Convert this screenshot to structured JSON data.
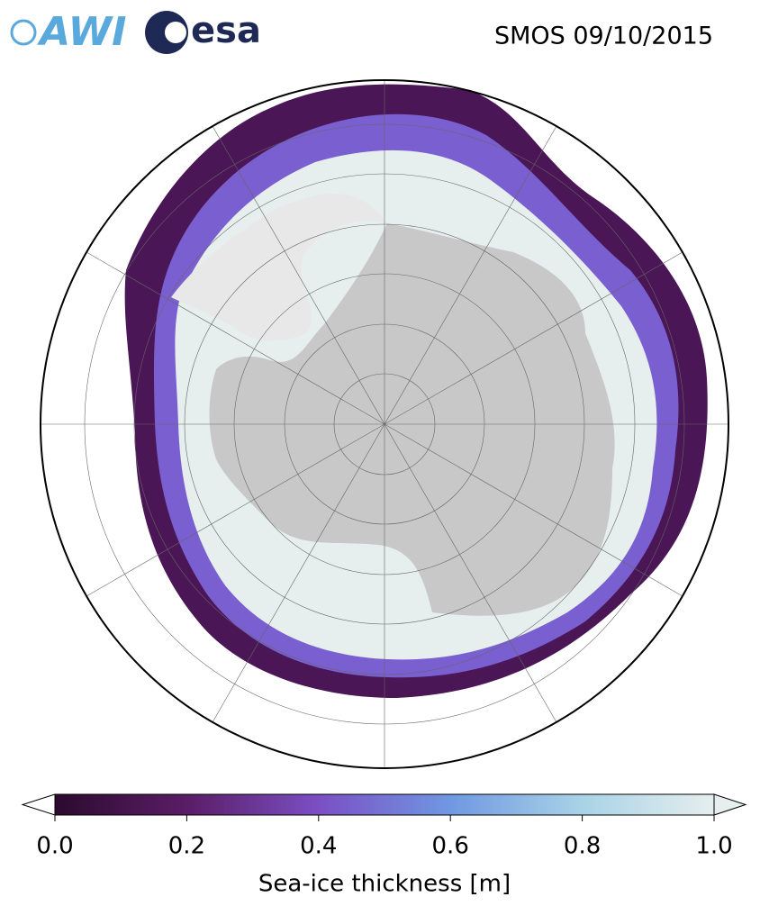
{
  "header": {
    "logos": [
      "AWI",
      "esa"
    ],
    "title": "SMOS 09/10/2015"
  },
  "colorbar": {
    "label": "Sea-ice thickness [m]",
    "range": [
      0,
      1
    ],
    "ticks": [
      {
        "value": 0,
        "label": "0.0"
      },
      0.2,
      0.4,
      0.6,
      0.8,
      {
        "value": 1,
        "label": "1.0"
      }
    ],
    "colors": [
      "#2b0b2e",
      "#5a1d66",
      "#7b4fc4",
      "#6f98e2",
      "#a9d3e6",
      "#e6eeee"
    ]
  }
}
